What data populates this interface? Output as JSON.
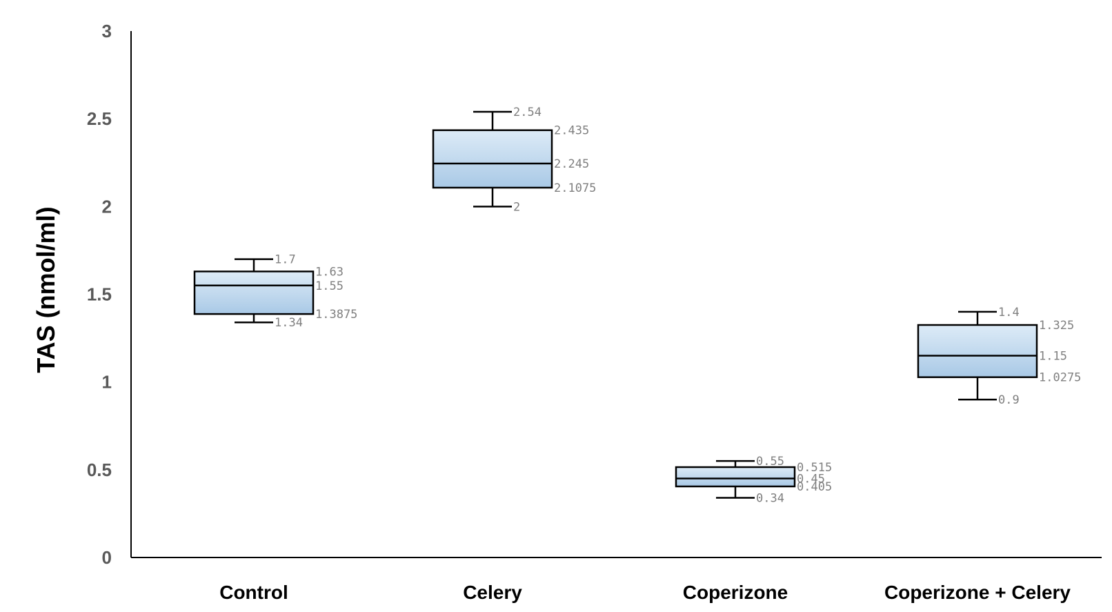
{
  "chart_data": {
    "type": "box",
    "title": "",
    "xlabel": "",
    "ylabel": "TAS  (nmol/ml)",
    "ylim": [
      0,
      3
    ],
    "yticks": [
      "0",
      "0.5",
      "1",
      "1.5",
      "2",
      "2.5",
      "3"
    ],
    "grid": false,
    "categories": [
      "Control",
      "Celery",
      "Coperizone",
      "Coperizone + Celery"
    ],
    "boxes": [
      {
        "min": 1.34,
        "q1": 1.3875,
        "median": 1.55,
        "q3": 1.63,
        "max": 1.7,
        "labels": {
          "min": "1.34",
          "q1": "1.3875",
          "median": "1.55",
          "q3": "1.63",
          "max": "1.7"
        }
      },
      {
        "min": 2,
        "q1": 2.1075,
        "median": 2.245,
        "q3": 2.435,
        "max": 2.54,
        "labels": {
          "min": "2",
          "q1": "2.1075",
          "median": "2.245",
          "q3": "2.435",
          "max": "2.54"
        }
      },
      {
        "min": 0.34,
        "q1": 0.405,
        "median": 0.45,
        "q3": 0.515,
        "max": 0.55,
        "labels": {
          "min": "0.34",
          "q1": "0.405",
          "median": "0.45",
          "q3": "0.515",
          "max": "0.55"
        }
      },
      {
        "min": 0.9,
        "q1": 1.0275,
        "median": 1.15,
        "q3": 1.325,
        "max": 1.4,
        "labels": {
          "min": "0.9",
          "q1": "1.0275",
          "median": "1.15",
          "q3": "1.325",
          "max": "1.4"
        }
      }
    ],
    "colors": {
      "box_top": "#ddebf7",
      "box_bottom": "#a9c9e6",
      "stroke": "#000000",
      "data_label": "#7f7f7f",
      "tick_label": "#595959"
    }
  }
}
